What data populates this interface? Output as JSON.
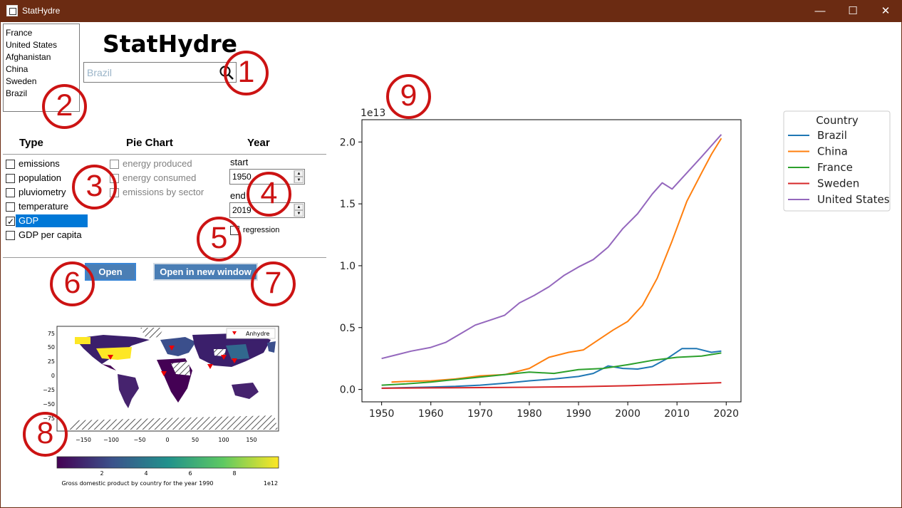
{
  "window": {
    "title": "StatHydre",
    "minimize": "—",
    "maximize": "☐",
    "close": "✕"
  },
  "app_title": "StatHydre",
  "country_list": [
    "France",
    "United States",
    "Afghanistan",
    "China",
    "Sweden",
    "Brazil"
  ],
  "search": {
    "placeholder": "Brazil",
    "value": ""
  },
  "markers": [
    "1",
    "2",
    "3",
    "4",
    "5",
    "6",
    "7",
    "8",
    "9"
  ],
  "headers": {
    "type": "Type",
    "pie": "Pie Chart",
    "year": "Year"
  },
  "type_options": [
    {
      "label": "emissions",
      "checked": false
    },
    {
      "label": "population",
      "checked": false
    },
    {
      "label": "pluviometry",
      "checked": false
    },
    {
      "label": "temperature",
      "checked": false
    },
    {
      "label": "GDP",
      "checked": true
    },
    {
      "label": "GDP per capita",
      "checked": false
    }
  ],
  "pie_options": [
    {
      "label": "energy produced",
      "checked": false
    },
    {
      "label": "energy consumed",
      "checked": false
    },
    {
      "label": "emissions by sector",
      "checked": false
    }
  ],
  "year": {
    "start_label": "start",
    "start": "1950",
    "end_label": "end",
    "end": "2019"
  },
  "regression_label": "regression",
  "buttons": {
    "open": "Open",
    "open_new": "Open  in new window"
  },
  "map": {
    "legend": "Anhydre",
    "yticks": [
      "75",
      "50",
      "25",
      "0",
      "−25",
      "−50",
      "−75"
    ],
    "xticks": [
      "−150",
      "−100",
      "−50",
      "0",
      "50",
      "100",
      "150"
    ],
    "cbar_ticks": [
      "2",
      "4",
      "6",
      "8"
    ],
    "cbar_label": "Gross domestic product by country for the year 1990",
    "cbar_exp": "1e12"
  },
  "chart_data": {
    "type": "line",
    "title": "",
    "xlabel": "",
    "ylabel": "",
    "offset_text": "1e13",
    "xlim": [
      1946,
      2023
    ],
    "ylim": [
      -0.1,
      2.18
    ],
    "xticks": [
      1950,
      1960,
      1970,
      1980,
      1990,
      2000,
      2010,
      2020
    ],
    "yticks": [
      0.0,
      0.5,
      1.0,
      1.5,
      2.0
    ],
    "ytick_labels": [
      "0.0",
      "0.5",
      "1.0",
      "1.5",
      "2.0"
    ],
    "legend_title": "Country",
    "legend_position": "outside-right",
    "series": [
      {
        "name": "Brazil",
        "color": "#1f77b4",
        "x": [
          1950,
          1955,
          1960,
          1965,
          1970,
          1975,
          1980,
          1985,
          1990,
          1993,
          1996,
          1999,
          2002,
          2005,
          2008,
          2011,
          2014,
          2017,
          2019
        ],
        "y": [
          0.01,
          0.015,
          0.02,
          0.025,
          0.035,
          0.05,
          0.07,
          0.085,
          0.105,
          0.13,
          0.19,
          0.17,
          0.165,
          0.185,
          0.25,
          0.33,
          0.33,
          0.3,
          0.31
        ]
      },
      {
        "name": "China",
        "color": "#ff7f0e",
        "x": [
          1952,
          1955,
          1960,
          1965,
          1970,
          1975,
          1980,
          1984,
          1988,
          1991,
          1994,
          1997,
          2000,
          2003,
          2006,
          2009,
          2012,
          2015,
          2017,
          2019
        ],
        "y": [
          0.06,
          0.065,
          0.07,
          0.085,
          0.11,
          0.12,
          0.17,
          0.26,
          0.3,
          0.32,
          0.4,
          0.48,
          0.55,
          0.68,
          0.9,
          1.2,
          1.52,
          1.75,
          1.9,
          2.03
        ]
      },
      {
        "name": "France",
        "color": "#2ca02c",
        "x": [
          1950,
          1955,
          1960,
          1965,
          1970,
          1975,
          1980,
          1985,
          1990,
          1995,
          2000,
          2005,
          2010,
          2015,
          2019
        ],
        "y": [
          0.035,
          0.045,
          0.06,
          0.08,
          0.1,
          0.12,
          0.14,
          0.13,
          0.16,
          0.17,
          0.2,
          0.235,
          0.26,
          0.27,
          0.295
        ]
      },
      {
        "name": "Sweden",
        "color": "#d62728",
        "x": [
          1950,
          1960,
          1970,
          1980,
          1990,
          2000,
          2010,
          2019
        ],
        "y": [
          0.01,
          0.013,
          0.015,
          0.018,
          0.022,
          0.03,
          0.043,
          0.055
        ]
      },
      {
        "name": "United States",
        "color": "#9467bd",
        "x": [
          1950,
          1953,
          1956,
          1960,
          1963,
          1966,
          1969,
          1972,
          1975,
          1978,
          1981,
          1984,
          1987,
          1990,
          1993,
          1996,
          1999,
          2002,
          2005,
          2007,
          2009,
          2012,
          2015,
          2017,
          2019
        ],
        "y": [
          0.25,
          0.28,
          0.31,
          0.34,
          0.38,
          0.45,
          0.52,
          0.56,
          0.6,
          0.7,
          0.76,
          0.83,
          0.92,
          0.99,
          1.05,
          1.15,
          1.3,
          1.42,
          1.58,
          1.67,
          1.62,
          1.75,
          1.88,
          1.97,
          2.06
        ]
      }
    ]
  }
}
